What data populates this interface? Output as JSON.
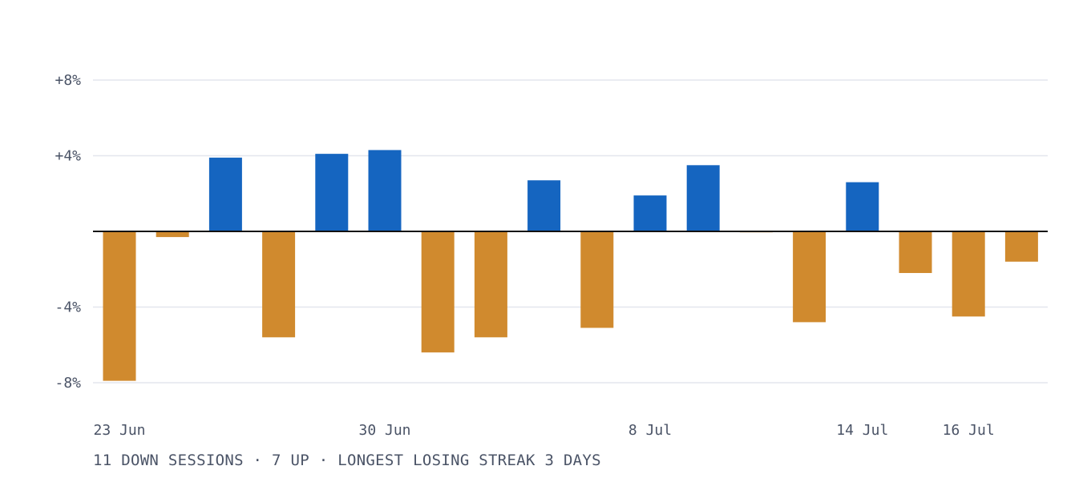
{
  "chart_data": {
    "type": "bar",
    "unit": "%",
    "ylim": [
      -8,
      8
    ],
    "yticks": [
      {
        "value": 8,
        "label": "+8%"
      },
      {
        "value": 4,
        "label": "+4%"
      },
      {
        "value": -4,
        "label": "-4%"
      },
      {
        "value": -8,
        "label": "-8%"
      }
    ],
    "xtick_labels": [
      {
        "index": 0,
        "label": "23 Jun"
      },
      {
        "index": 5,
        "label": "30 Jun"
      },
      {
        "index": 10,
        "label": "8 Jul"
      },
      {
        "index": 14,
        "label": "14 Jul"
      },
      {
        "index": 16,
        "label": "16 Jul"
      }
    ],
    "values": [
      -7.9,
      -0.3,
      3.9,
      -5.6,
      4.1,
      4.3,
      -6.4,
      -5.6,
      2.7,
      -5.1,
      1.9,
      3.5,
      -0.05,
      -4.8,
      2.6,
      -2.2,
      -4.5,
      -1.6
    ],
    "grid": true,
    "colors": {
      "up": "#1565c0",
      "down": "#d08a2e",
      "zero_line": "#111111",
      "grid": "#e3e6ee"
    }
  },
  "caption": "11 DOWN SESSIONS · 7 UP · LONGEST LOSING STREAK 3 DAYS"
}
